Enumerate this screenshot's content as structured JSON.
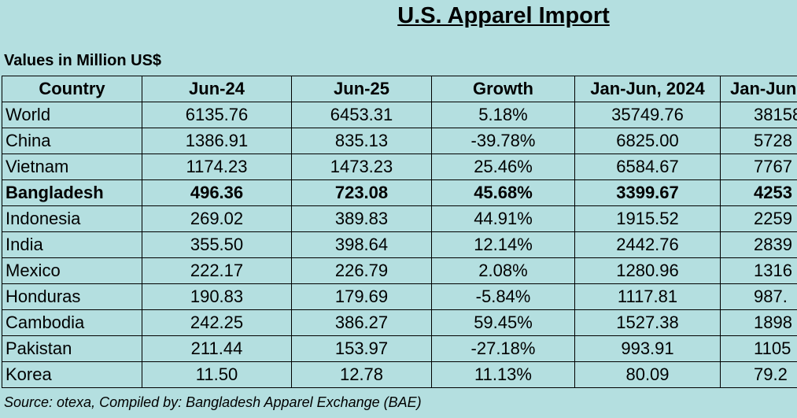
{
  "header": {
    "title": "U.S. Apparel Import",
    "subtitle": "Values in Million US$"
  },
  "table": {
    "columns": [
      "Country",
      "Jun-24",
      "Jun-25",
      "Growth",
      "Jan-Jun, 2024",
      "Jan-Jun"
    ],
    "rows": [
      [
        "World",
        "6135.76",
        "6453.31",
        "5.18%",
        "35749.76",
        "38158"
      ],
      [
        "China",
        "1386.91",
        "835.13",
        "-39.78%",
        "6825.00",
        "5728"
      ],
      [
        "Vietnam",
        "1174.23",
        "1473.23",
        "25.46%",
        "6584.67",
        "7767"
      ],
      [
        "Bangladesh",
        "496.36",
        "723.08",
        "45.68%",
        "3399.67",
        "4253"
      ],
      [
        "Indonesia",
        "269.02",
        "389.83",
        "44.91%",
        "1915.52",
        "2259"
      ],
      [
        "India",
        "355.50",
        "398.64",
        "12.14%",
        "2442.76",
        "2839"
      ],
      [
        "Mexico",
        "222.17",
        "226.79",
        "2.08%",
        "1280.96",
        "1316"
      ],
      [
        "Honduras",
        "190.83",
        "179.69",
        "-5.84%",
        "1117.81",
        "987."
      ],
      [
        "Cambodia",
        "242.25",
        "386.27",
        "59.45%",
        "1527.38",
        "1898"
      ],
      [
        "Pakistan",
        "211.44",
        "153.97",
        "-27.18%",
        "993.91",
        "1105"
      ],
      [
        "Korea",
        "11.50",
        "12.78",
        "11.13%",
        "80.09",
        "79.2"
      ]
    ]
  },
  "footer": {
    "source": "Source: otexa, Compiled by: Bangladesh Apparel Exchange (BAE)"
  }
}
